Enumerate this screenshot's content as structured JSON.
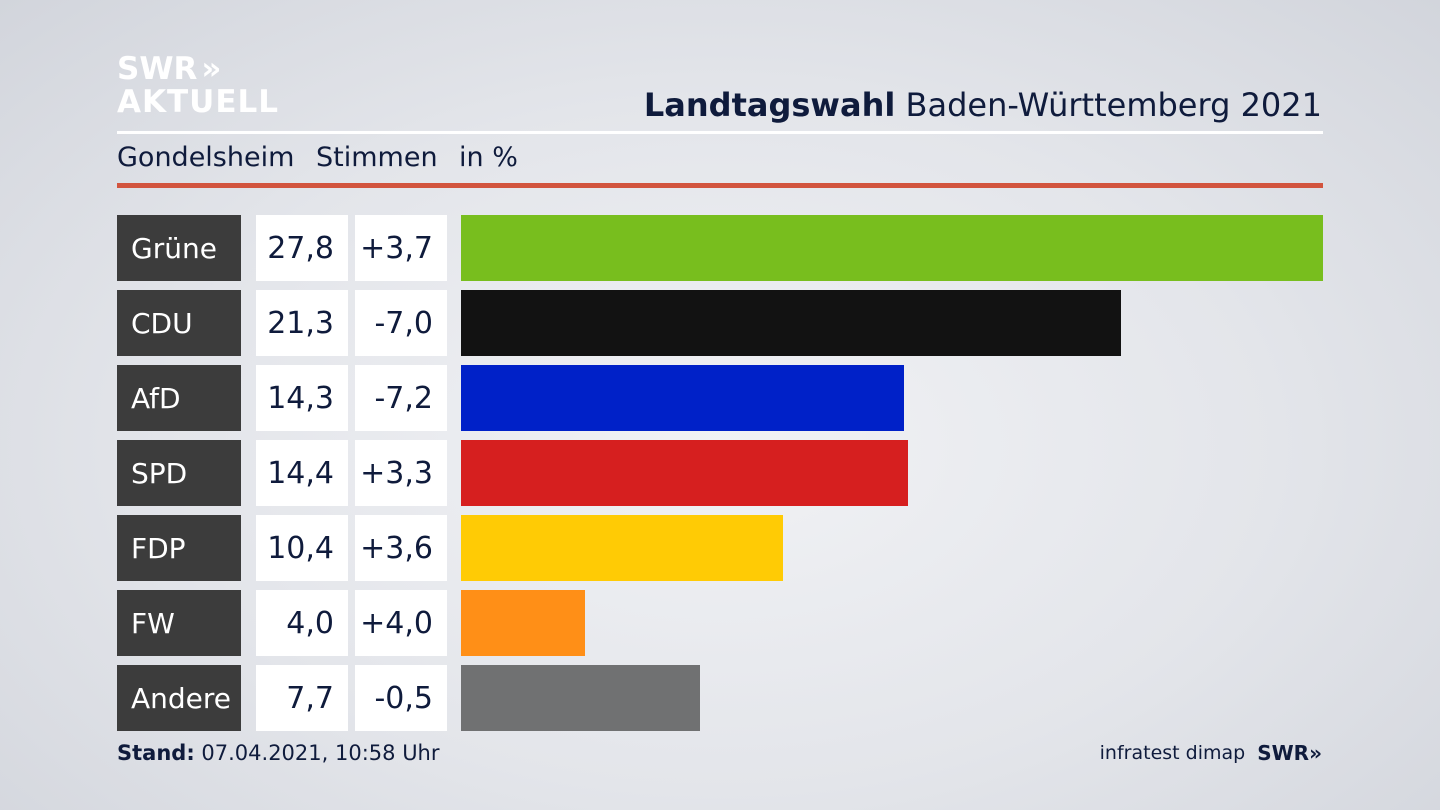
{
  "branding": {
    "logo_line1": "SWR",
    "logo_line2": "AKTUELL",
    "logo_arrows": "»",
    "footer_source": "infratest dimap",
    "footer_logo": "SWR",
    "footer_logo_arrows": "»"
  },
  "title": {
    "bold": "Landtagswahl",
    "regular": "Baden-Württemberg 2021"
  },
  "subheader": {
    "location": "Gondelsheim",
    "metric": "Stimmen",
    "unit": "in %"
  },
  "footer": {
    "stand_label": "Stand:",
    "stand_value": "07.04.2021, 10:58 Uhr"
  },
  "chart_data": {
    "type": "bar",
    "orientation": "horizontal",
    "categories": [
      "Grüne",
      "CDU",
      "AfD",
      "SPD",
      "FDP",
      "FW",
      "Andere"
    ],
    "values": [
      27.8,
      21.3,
      14.3,
      14.4,
      10.4,
      4.0,
      7.7
    ],
    "value_labels": [
      "27,8",
      "21,3",
      "14,3",
      "14,4",
      "10,4",
      "4,0",
      "7,7"
    ],
    "change_labels": [
      "+3,7",
      "-7,0",
      "-7,2",
      "+3,3",
      "+3,6",
      "+4,0",
      "-0,5"
    ],
    "changes": [
      3.7,
      -7.0,
      -7.2,
      3.3,
      3.6,
      4.0,
      -0.5
    ],
    "colors": [
      "#78be1e",
      "#121212",
      "#0021c8",
      "#d61f1f",
      "#ffcb05",
      "#ff8f17",
      "#707172"
    ],
    "xlim": [
      0,
      27.8
    ],
    "grid": false
  }
}
